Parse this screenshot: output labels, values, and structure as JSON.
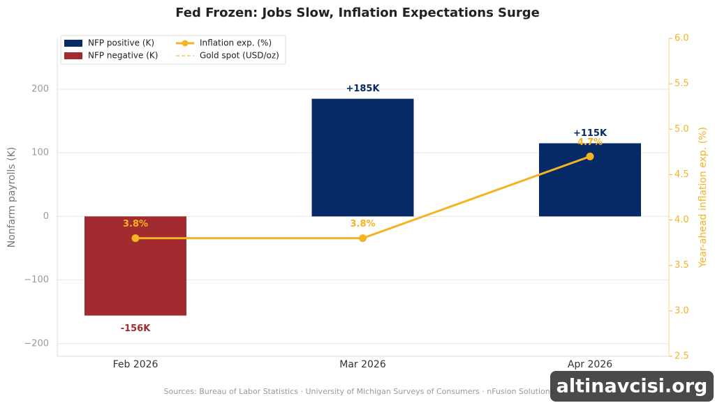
{
  "chart_data": {
    "type": "bar",
    "title": "Fed Frozen: Jobs Slow, Inflation Expectations Surge",
    "categories": [
      "Feb 2026",
      "Mar 2026",
      "Apr 2026"
    ],
    "series": [
      {
        "name": "NFP positive (K)",
        "color": "#062a66"
      },
      {
        "name": "NFP negative (K)",
        "color": "#a12b2e"
      },
      {
        "name": "Inflation exp. (%)",
        "color": "#f5b323",
        "axis": "y2",
        "values": [
          3.8,
          3.8,
          4.7
        ],
        "value_labels": [
          "3.8%",
          "3.8%",
          "4.7%"
        ]
      },
      {
        "name": "Gold spot (USD/oz)",
        "color": "#f7d57a",
        "style": "dashed"
      }
    ],
    "values": [
      -156,
      185,
      115
    ],
    "value_labels": [
      "-156K",
      "+185K",
      "+115K"
    ],
    "ylabel": "Nonfarm payrolls (K)",
    "y2label": "Year-ahead inflation exp. (%)",
    "ylim": [
      -220,
      280
    ],
    "yticks": [
      {
        "value": -200,
        "label": "−200"
      },
      {
        "value": -100,
        "label": "−100"
      },
      0,
      100,
      200
    ],
    "y2lim": [
      2.5,
      6.0
    ],
    "y2ticks": [
      2.5,
      {
        "value": 3,
        "label": "3.0"
      },
      3.5,
      {
        "value": 4,
        "label": "4.0"
      },
      4.5,
      {
        "value": 5,
        "label": "5.0"
      },
      5.5,
      {
        "value": 6,
        "label": "6.0"
      }
    ],
    "grid": true,
    "legend": "upper left",
    "source": "Sources: Bureau of Labor Statistics · University of Michigan Surveys of Consumers · nFusion Solutions",
    "watermark": "altinavcisi.org"
  }
}
